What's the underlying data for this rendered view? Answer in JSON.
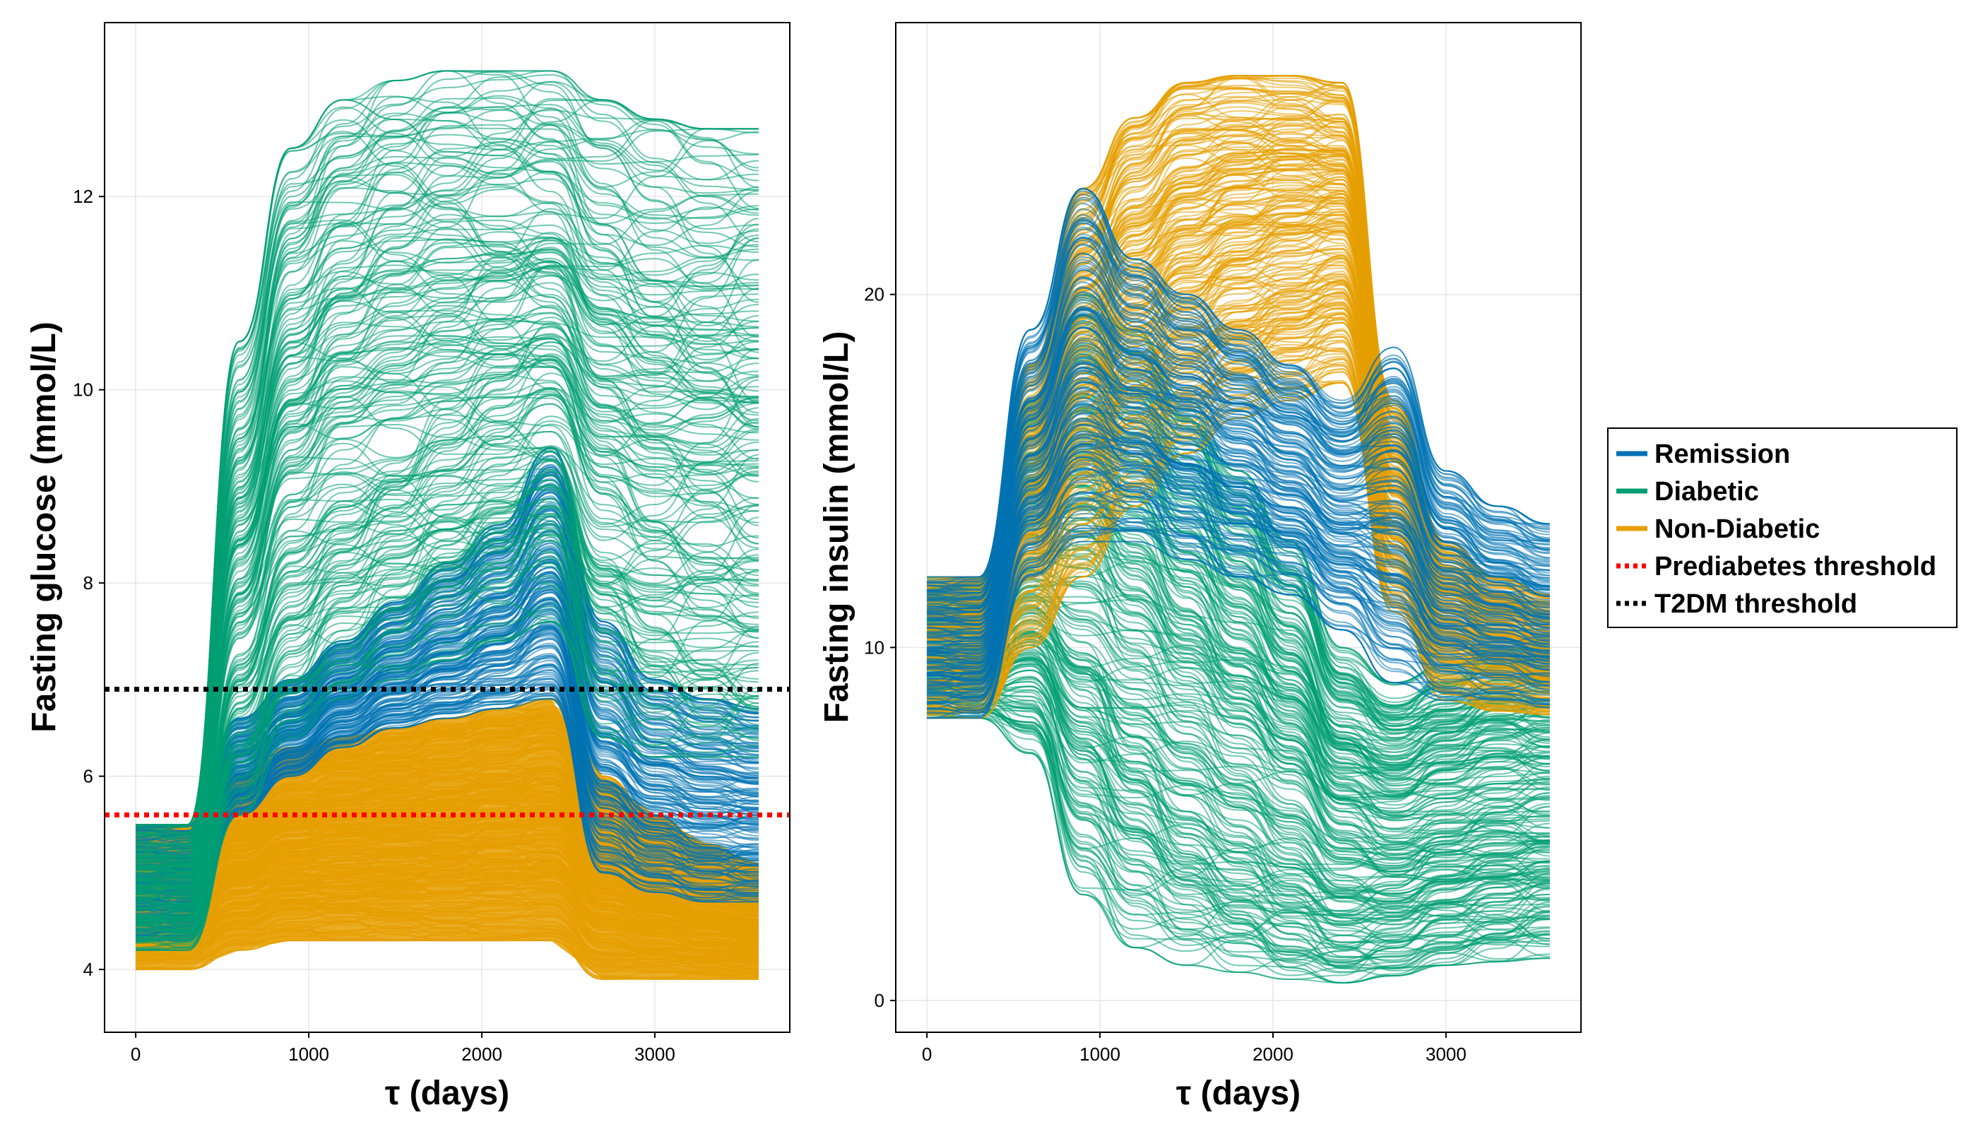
{
  "chart_data": [
    {
      "type": "line",
      "title": "",
      "xlabel": "τ (days)",
      "ylabel": "Fasting glucose (mmol/L)",
      "xlim": [
        -180,
        3780
      ],
      "ylim": [
        3.35,
        13.8
      ],
      "xticks": [
        0,
        1000,
        2000,
        3000
      ],
      "yticks": [
        4,
        6,
        8,
        10,
        12
      ],
      "xtick_labels": [
        "0",
        "1000",
        "2000",
        "3000"
      ],
      "ytick_labels": [
        "4",
        "6",
        "8",
        "10",
        "12"
      ],
      "grid": true,
      "x": [
        0,
        300,
        600,
        900,
        1200,
        1500,
        1800,
        2100,
        2400,
        2700,
        3000,
        3300,
        3600
      ],
      "thresholds": [
        {
          "name": "Prediabetes threshold",
          "value": 5.6,
          "color": "#ff0000",
          "style": "dotted"
        },
        {
          "name": "T2DM threshold",
          "value": 6.9,
          "color": "#000000",
          "style": "dotted"
        }
      ],
      "series": [
        {
          "name": "Non-Diabetic",
          "color": "#E69F00",
          "count": 400,
          "band": "filled",
          "low": [
            4.0,
            4.0,
            4.2,
            4.3,
            4.3,
            4.3,
            4.3,
            4.3,
            4.3,
            3.9,
            3.9,
            3.9,
            3.9
          ],
          "high": [
            5.5,
            5.5,
            6.0,
            6.3,
            6.4,
            6.5,
            6.6,
            6.7,
            6.8,
            6.0,
            5.6,
            5.3,
            5.1
          ]
        },
        {
          "name": "Remission",
          "color": "#0072B2",
          "count": 200,
          "low": [
            4.3,
            4.3,
            5.6,
            6.0,
            6.3,
            6.5,
            6.6,
            6.7,
            6.8,
            5.0,
            4.8,
            4.7,
            4.7
          ],
          "high": [
            5.5,
            5.5,
            6.6,
            7.0,
            7.4,
            7.8,
            8.2,
            8.6,
            9.4,
            7.6,
            7.0,
            6.8,
            6.7
          ]
        },
        {
          "name": "Diabetic",
          "color": "#009E73",
          "count": 220,
          "low": [
            4.2,
            4.2,
            5.6,
            6.4,
            6.8,
            7.0,
            7.2,
            7.4,
            7.6,
            6.4,
            6.2,
            6.2,
            6.2
          ],
          "high": [
            5.5,
            5.5,
            10.5,
            12.5,
            13.0,
            13.2,
            13.3,
            13.3,
            13.3,
            13.0,
            12.8,
            12.7,
            12.7
          ]
        }
      ]
    },
    {
      "type": "line",
      "title": "",
      "xlabel": "τ (days)",
      "ylabel": "Fasting insulin (mmol/L)",
      "xlim": [
        -180,
        3780
      ],
      "ylim": [
        -0.9,
        27.7
      ],
      "xticks": [
        0,
        1000,
        2000,
        3000
      ],
      "yticks": [
        0,
        10,
        20
      ],
      "xtick_labels": [
        "0",
        "1000",
        "2000",
        "3000"
      ],
      "ytick_labels": [
        "0",
        "10",
        "20"
      ],
      "grid": true,
      "x": [
        0,
        300,
        600,
        900,
        1200,
        1500,
        1800,
        2100,
        2400,
        2700,
        3000,
        3300,
        3600
      ],
      "series": [
        {
          "name": "Diabetic",
          "color": "#009E73",
          "count": 260,
          "low": [
            8.0,
            8.0,
            7.0,
            3.0,
            1.5,
            1.0,
            0.8,
            0.6,
            0.5,
            0.7,
            1.0,
            1.1,
            1.2
          ],
          "high": [
            12.0,
            12.0,
            17.0,
            20.0,
            19.0,
            17.0,
            15.0,
            13.0,
            10.0,
            9.0,
            9.5,
            10.0,
            10.0
          ]
        },
        {
          "name": "Non-Diabetic",
          "color": "#E69F00",
          "count": 260,
          "low": [
            8.0,
            8.0,
            10.0,
            12.0,
            14.0,
            15.5,
            16.5,
            17.0,
            17.5,
            11.0,
            8.5,
            8.2,
            8.1
          ],
          "high": [
            12.0,
            12.0,
            18.0,
            23.0,
            25.0,
            26.0,
            26.2,
            26.2,
            26.0,
            17.0,
            13.0,
            12.0,
            11.5
          ]
        },
        {
          "name": "Remission",
          "color": "#0072B2",
          "count": 180,
          "low": [
            8.0,
            8.0,
            12.0,
            13.0,
            13.0,
            12.5,
            12.0,
            11.5,
            10.5,
            9.0,
            8.5,
            8.5,
            8.3
          ],
          "high": [
            12.0,
            12.0,
            19.0,
            23.0,
            21.0,
            20.0,
            19.0,
            18.0,
            17.0,
            18.5,
            15.0,
            14.0,
            13.5
          ]
        }
      ]
    }
  ],
  "legend": {
    "placement": "right",
    "entries": [
      {
        "label": "Remission",
        "color": "#0072B2",
        "style": "solid"
      },
      {
        "label": "Diabetic",
        "color": "#009E73",
        "style": "solid"
      },
      {
        "label": "Non-Diabetic",
        "color": "#E69F00",
        "style": "solid"
      },
      {
        "label": "Prediabetes threshold",
        "color": "#ff0000",
        "style": "dotted"
      },
      {
        "label": "T2DM threshold",
        "color": "#000000",
        "style": "dotted"
      }
    ]
  }
}
